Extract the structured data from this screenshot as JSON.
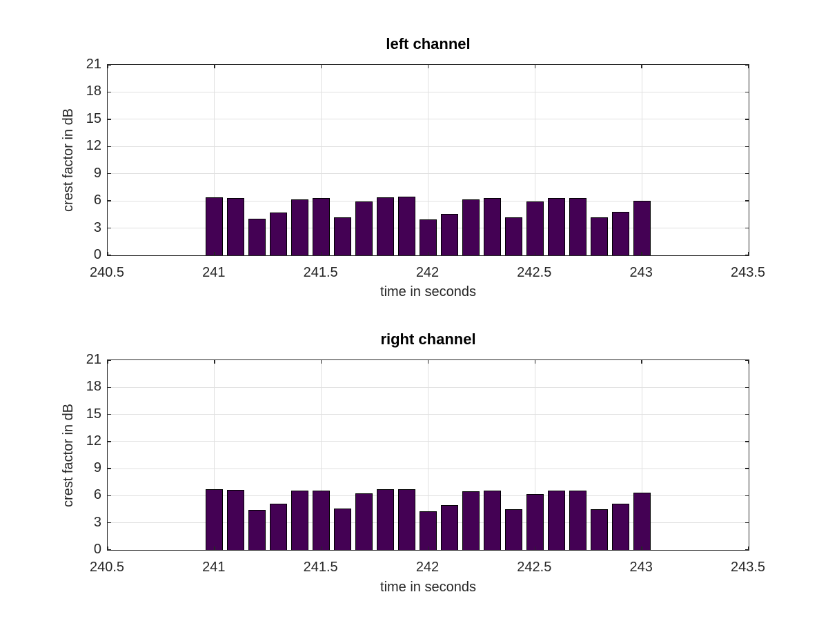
{
  "chart_data": [
    {
      "type": "bar",
      "title": "left channel",
      "xlabel": "time in seconds",
      "ylabel": "crest factor in dB",
      "xlim": [
        240.5,
        243.5
      ],
      "ylim": [
        0,
        21
      ],
      "x_ticks": [
        240.5,
        241,
        241.5,
        242,
        242.5,
        243,
        243.5
      ],
      "x_tick_labels": [
        "240.5",
        "241",
        "241.5",
        "242",
        "242.5",
        "243",
        "243.5"
      ],
      "y_ticks": [
        0,
        3,
        6,
        9,
        12,
        15,
        18,
        21
      ],
      "y_tick_labels": [
        "0",
        "3",
        "6",
        "9",
        "12",
        "15",
        "18",
        "21"
      ],
      "grid": true,
      "legend": null,
      "bar_width_seconds": 0.08,
      "bar_color": "#440154",
      "bar_edge_color": "#000000",
      "x": [
        241.0,
        241.1,
        241.2,
        241.3,
        241.4,
        241.5,
        241.6,
        241.7,
        241.8,
        241.9,
        242.0,
        242.1,
        242.2,
        242.3,
        242.4,
        242.5,
        242.6,
        242.7,
        242.8,
        242.9,
        243.0
      ],
      "values": [
        6.4,
        6.3,
        4.05,
        4.75,
        6.2,
        6.3,
        4.2,
        5.9,
        6.4,
        6.45,
        3.95,
        4.6,
        6.2,
        6.3,
        4.15,
        5.9,
        6.35,
        6.35,
        4.15,
        4.8,
        6.05
      ]
    },
    {
      "type": "bar",
      "title": "right channel",
      "xlabel": "time in seconds",
      "ylabel": "crest factor in dB",
      "xlim": [
        240.5,
        243.5
      ],
      "ylim": [
        0,
        21
      ],
      "x_ticks": [
        240.5,
        241,
        241.5,
        242,
        242.5,
        243,
        243.5
      ],
      "x_tick_labels": [
        "240.5",
        "241",
        "241.5",
        "242",
        "242.5",
        "243",
        "243.5"
      ],
      "y_ticks": [
        0,
        3,
        6,
        9,
        12,
        15,
        18,
        21
      ],
      "y_tick_labels": [
        "0",
        "3",
        "6",
        "9",
        "12",
        "15",
        "18",
        "21"
      ],
      "grid": true,
      "legend": null,
      "bar_width_seconds": 0.08,
      "bar_color": "#440154",
      "bar_edge_color": "#000000",
      "x": [
        241.0,
        241.1,
        241.2,
        241.3,
        241.4,
        241.5,
        241.6,
        241.7,
        241.8,
        241.9,
        242.0,
        242.1,
        242.2,
        242.3,
        242.4,
        242.5,
        242.6,
        242.7,
        242.8,
        242.9,
        243.0
      ],
      "values": [
        6.7,
        6.65,
        4.45,
        5.1,
        6.55,
        6.6,
        4.55,
        6.25,
        6.7,
        6.75,
        4.3,
        4.95,
        6.5,
        6.6,
        4.5,
        6.15,
        6.6,
        6.6,
        4.5,
        5.1,
        6.35
      ]
    }
  ],
  "style": {
    "grid_color": "#e0e0e0",
    "axis_color": "#262626",
    "title_color": "#000000",
    "background_color": "#ffffff"
  }
}
